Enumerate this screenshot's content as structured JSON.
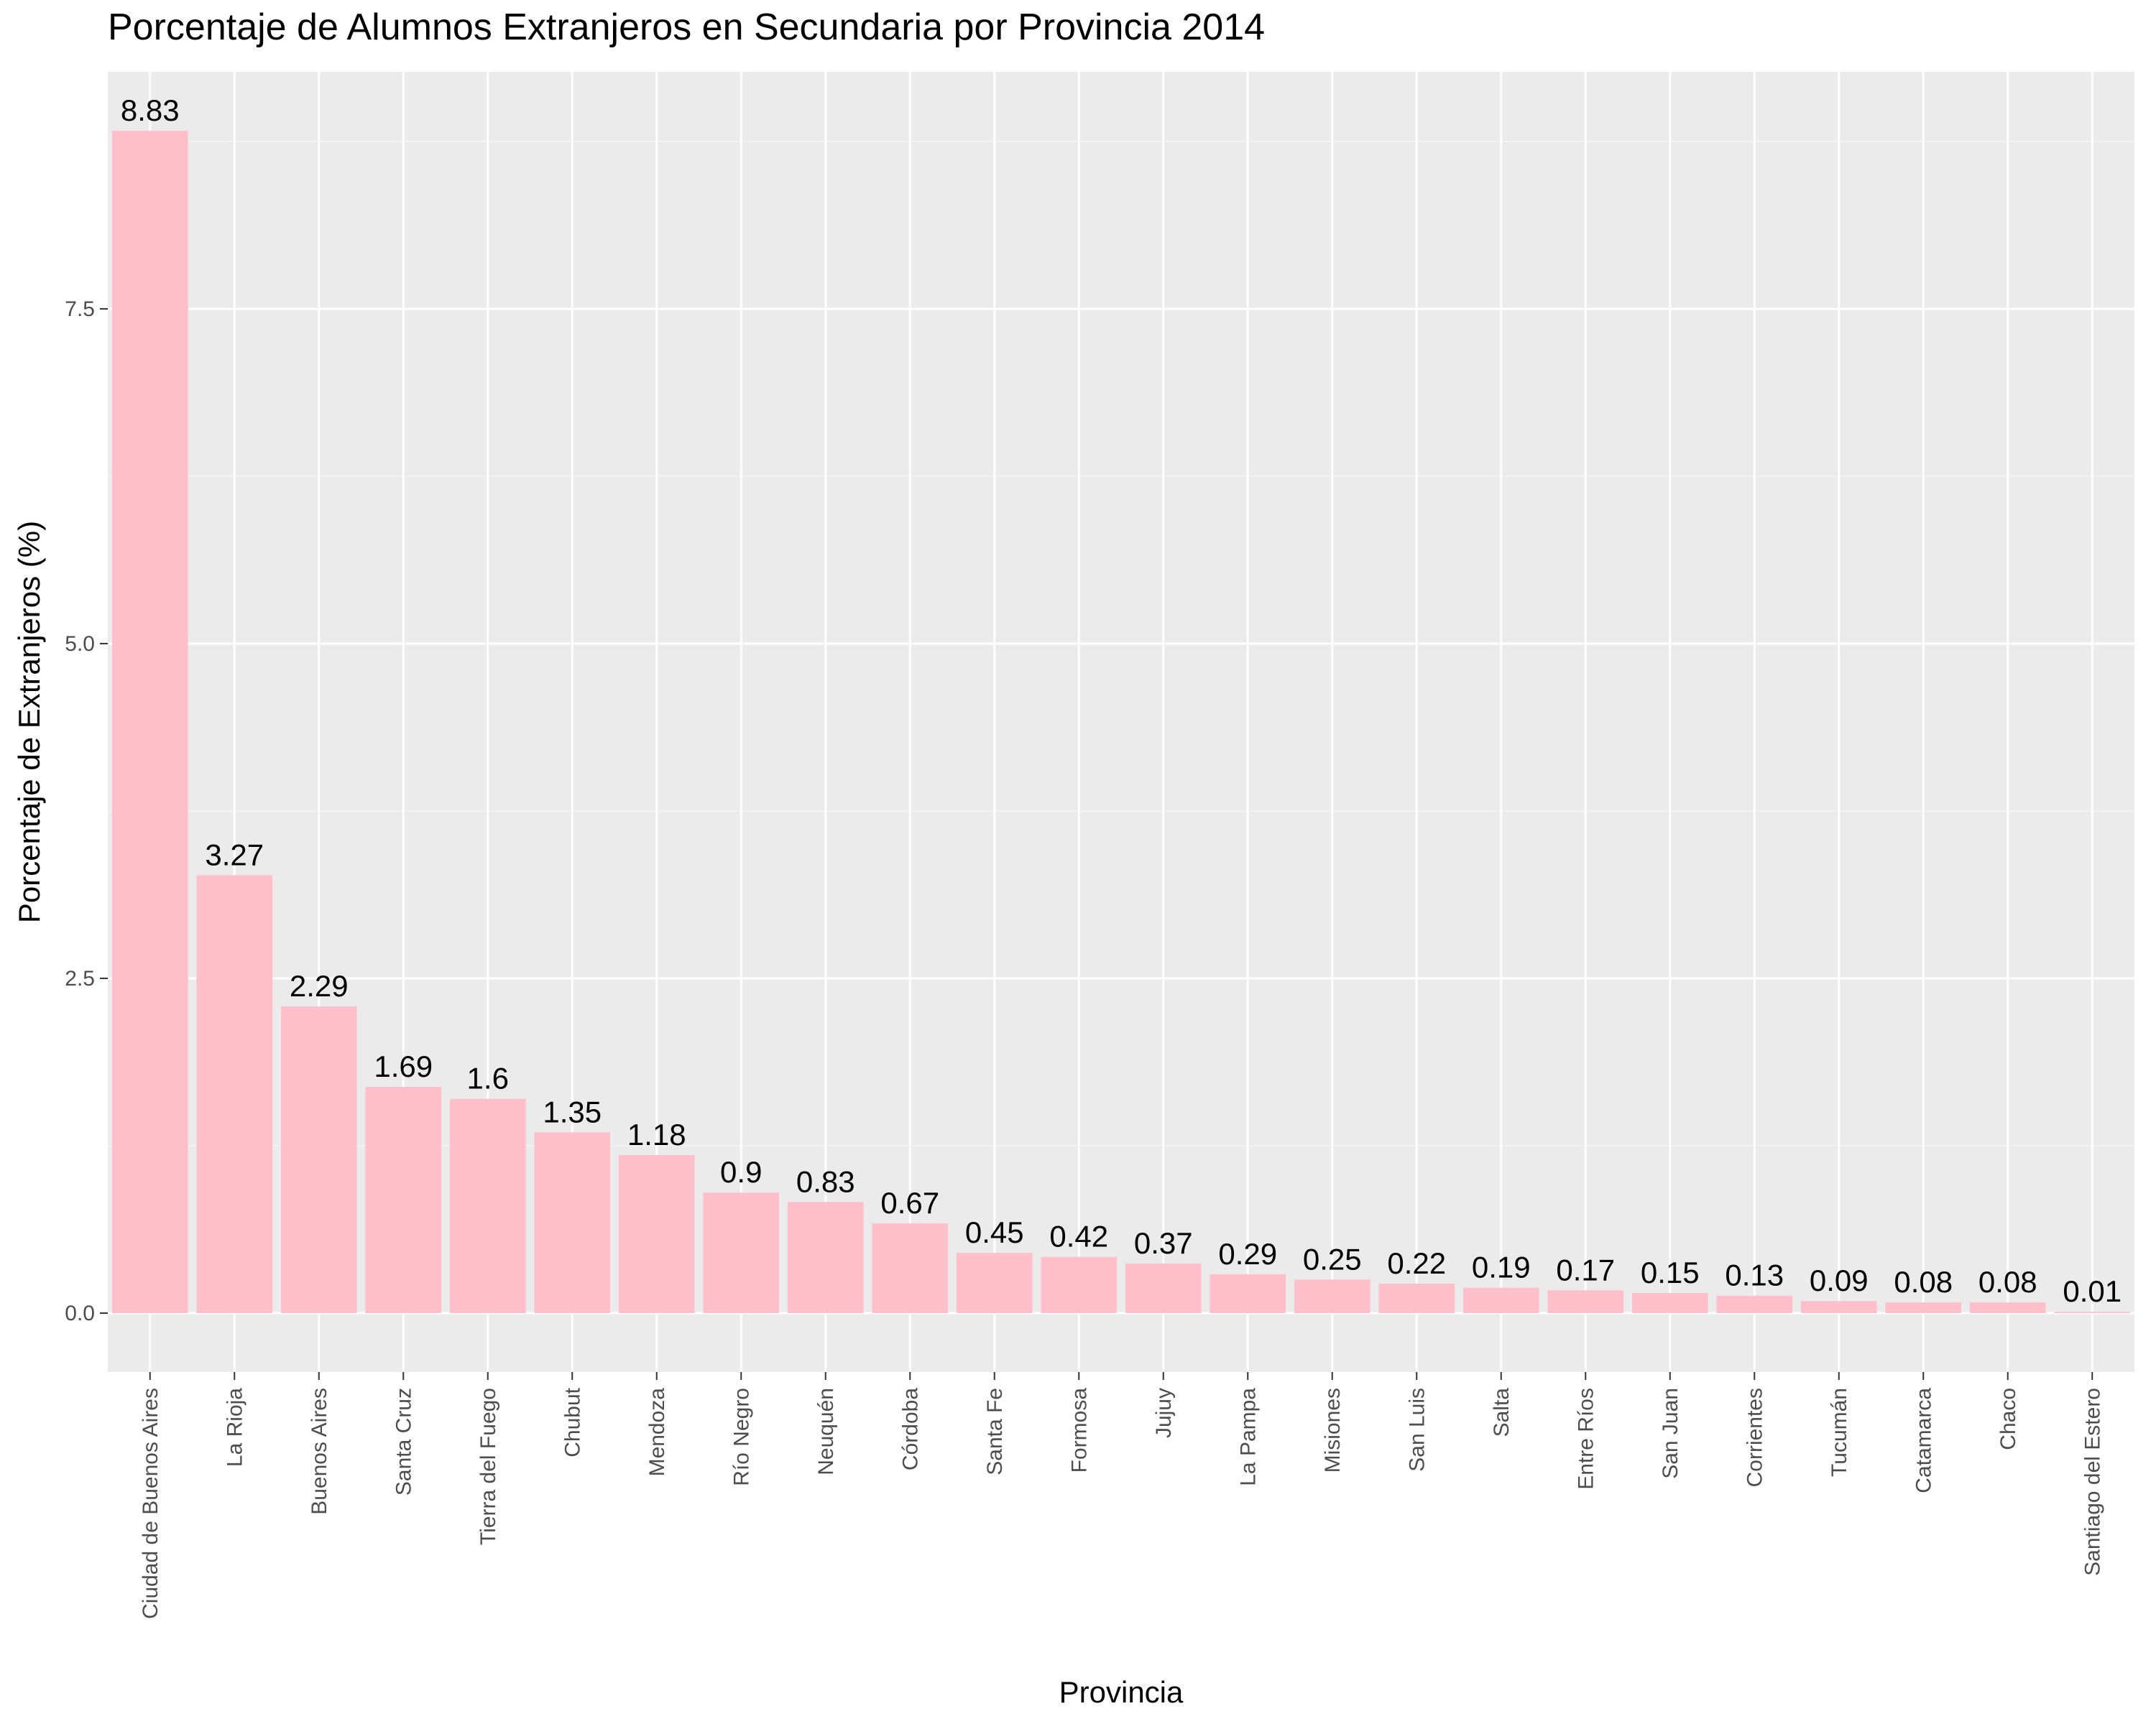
{
  "chart_data": {
    "type": "bar",
    "title": "Porcentaje de Alumnos Extranjeros en Secundaria por Provincia 2014",
    "xlabel": "Provincia",
    "ylabel": "Porcentaje de Extranjeros (%)",
    "categories": [
      "Ciudad de Buenos Aires",
      "La Rioja",
      "Buenos Aires",
      "Santa Cruz",
      "Tierra del Fuego",
      "Chubut",
      "Mendoza",
      "Río Negro",
      "Neuquén",
      "Córdoba",
      "Santa Fe",
      "Formosa",
      "Jujuy",
      "La Pampa",
      "Misiones",
      "San Luis",
      "Salta",
      "Entre Ríos",
      "San Juan",
      "Corrientes",
      "Tucumán",
      "Catamarca",
      "Chaco",
      "Santiago del Estero"
    ],
    "values": [
      8.83,
      3.27,
      2.29,
      1.69,
      1.6,
      1.35,
      1.18,
      0.9,
      0.83,
      0.67,
      0.45,
      0.42,
      0.37,
      0.29,
      0.25,
      0.22,
      0.19,
      0.17,
      0.15,
      0.13,
      0.09,
      0.08,
      0.08,
      0.01
    ],
    "data_labels": [
      "8.83",
      "3.27",
      "2.29",
      "1.69",
      "1.6",
      "1.35",
      "1.18",
      "0.9",
      "0.83",
      "0.67",
      "0.45",
      "0.42",
      "0.37",
      "0.29",
      "0.25",
      "0.22",
      "0.19",
      "0.17",
      "0.15",
      "0.13",
      "0.09",
      "0.08",
      "0.08",
      "0.01"
    ],
    "yticks": [
      0,
      2.5,
      5,
      7.5
    ],
    "ytick_labels": [
      "0.0",
      "2.5",
      "5.0",
      "7.5"
    ],
    "ylim": [
      -0.44,
      9.27
    ],
    "grid": true,
    "legend": "none",
    "colors": {
      "bar": "#FFC0CB",
      "panel": "#EBEBEB",
      "grid_major": "#FFFFFF",
      "grid_minor": "#F5F5F5",
      "tick_text": "#4D4D4D",
      "tick_mark": "#333333"
    }
  }
}
